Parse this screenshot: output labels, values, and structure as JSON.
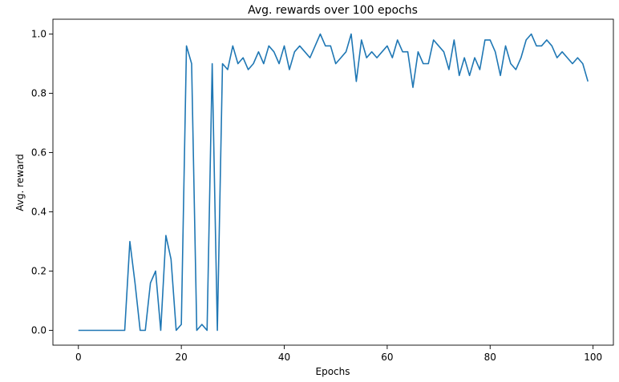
{
  "chart_data": {
    "type": "line",
    "title": "Avg. rewards over 100 epochs",
    "xlabel": "Epochs",
    "ylabel": "Avg. reward",
    "xlim": [
      -4.95,
      103.95
    ],
    "ylim": [
      -0.05,
      1.05
    ],
    "xticks": [
      0,
      20,
      40,
      60,
      80,
      100
    ],
    "yticks": [
      0.0,
      0.2,
      0.4,
      0.6,
      0.8,
      1.0
    ],
    "xtick_labels": [
      "0",
      "20",
      "40",
      "60",
      "80",
      "100"
    ],
    "ytick_labels": [
      "0.0",
      "0.2",
      "0.4",
      "0.6",
      "0.8",
      "1.0"
    ],
    "grid": false,
    "series": [
      {
        "color": "#1f77b4",
        "x": [
          0,
          1,
          2,
          3,
          4,
          5,
          6,
          7,
          8,
          9,
          10,
          11,
          12,
          13,
          14,
          15,
          16,
          17,
          18,
          19,
          20,
          21,
          22,
          23,
          24,
          25,
          26,
          27,
          28,
          29,
          30,
          31,
          32,
          33,
          34,
          35,
          36,
          37,
          38,
          39,
          40,
          41,
          42,
          43,
          44,
          45,
          46,
          47,
          48,
          49,
          50,
          51,
          52,
          53,
          54,
          55,
          56,
          57,
          58,
          59,
          60,
          61,
          62,
          63,
          64,
          65,
          66,
          67,
          68,
          69,
          70,
          71,
          72,
          73,
          74,
          75,
          76,
          77,
          78,
          79,
          80,
          81,
          82,
          83,
          84,
          85,
          86,
          87,
          88,
          89,
          90,
          91,
          92,
          93,
          94,
          95,
          96,
          97,
          98,
          99
        ],
        "y": [
          0,
          0,
          0,
          0,
          0,
          0,
          0,
          0,
          0,
          0,
          0.3,
          0.16,
          0,
          0,
          0.16,
          0.2,
          0,
          0.32,
          0.24,
          0,
          0.02,
          0.96,
          0.9,
          0,
          0.02,
          0,
          0.9,
          0,
          0.9,
          0.88,
          0.96,
          0.9,
          0.92,
          0.88,
          0.9,
          0.94,
          0.9,
          0.96,
          0.94,
          0.9,
          0.96,
          0.88,
          0.94,
          0.96,
          0.94,
          0.92,
          0.96,
          1.0,
          0.96,
          0.96,
          0.9,
          0.92,
          0.94,
          1.0,
          0.84,
          0.98,
          0.92,
          0.94,
          0.92,
          0.94,
          0.96,
          0.92,
          0.98,
          0.94,
          0.94,
          0.82,
          0.94,
          0.9,
          0.9,
          0.98,
          0.96,
          0.94,
          0.88,
          0.98,
          0.86,
          0.92,
          0.86,
          0.92,
          0.88,
          0.98,
          0.98,
          0.94,
          0.86,
          0.96,
          0.9,
          0.88,
          0.92,
          0.98,
          1.0,
          0.96,
          0.96,
          0.98,
          0.96,
          0.92,
          0.94,
          0.92,
          0.9,
          0.92,
          0.9,
          0.84
        ]
      }
    ]
  }
}
